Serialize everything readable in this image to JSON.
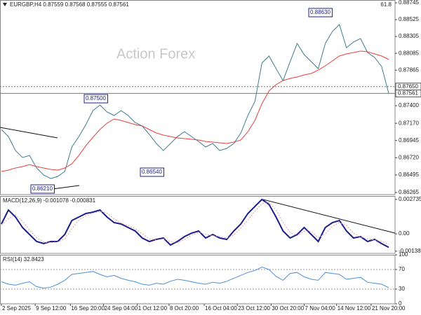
{
  "chart_data": [
    {
      "type": "line",
      "title": "EURGBP,H4 0.87559 0.87568 0.87555 0.87561",
      "watermark": "Action Forex",
      "corner_note": "61.8",
      "annotations": [
        "0.88630",
        "0.87500",
        "0.86540",
        "0.86210"
      ],
      "xlim": [
        -0.2,
        55.9
      ],
      "ylim": [
        0.86238,
        0.88782
      ],
      "yticks": [
        0.88745,
        0.88525,
        0.88305,
        0.88085,
        0.87865,
        {
          "value": 0.874,
          "label": "0.87400"
        },
        {
          "value": 0.8717,
          "label": "0.87170"
        },
        0.86945,
        {
          "value": 0.8672,
          "label": "0.86720"
        },
        0.86495,
        0.86265
      ],
      "price_lines": [
        {
          "value": 0.8765,
          "label": "0.87650",
          "style": "dotted"
        },
        {
          "value": 0.87561,
          "label": "0.87561",
          "style": "solid"
        }
      ],
      "series": [
        {
          "color": "#3f7d8e",
          "style": "solid",
          "values": [
            0.87089,
            0.86997,
            0.86814,
            0.86723,
            0.8675,
            0.86586,
            0.86494,
            0.86448,
            0.86476,
            0.8654,
            0.8686,
            0.86997,
            0.87153,
            0.87336,
            0.87409,
            0.87318,
            0.87272,
            0.87336,
            0.87272,
            0.8718,
            0.87135,
            0.87025,
            0.86906,
            0.86814,
            0.86906,
            0.86997,
            0.87061,
            0.86997,
            0.86933,
            0.8686,
            0.86906,
            0.86814,
            0.86842,
            0.86906,
            0.87043,
            0.87272,
            0.87455,
            0.87958,
            0.8805,
            0.87885,
            0.87729,
            0.87976,
            0.88214,
            0.88068,
            0.87976,
            0.87885,
            0.88214,
            0.8837,
            0.88461,
            0.88159,
            0.88233,
            0.88278,
            0.88095,
            0.88031,
            0.87912,
            0.87561
          ]
        },
        {
          "color": "#e8403a",
          "style": "solid",
          "values": [
            0.8654,
            0.86558,
            0.86586,
            0.86604,
            0.86631,
            0.86604,
            0.86586,
            0.86567,
            0.86558,
            0.86586,
            0.8664,
            0.8675,
            0.86878,
            0.86988,
            0.87089,
            0.87171,
            0.87226,
            0.87208,
            0.8718,
            0.87153,
            0.87135,
            0.87089,
            0.87043,
            0.87016,
            0.86997,
            0.86979,
            0.8697,
            0.86961,
            0.86952,
            0.86933,
            0.86924,
            0.86915,
            0.86906,
            0.86924,
            0.86952,
            0.87061,
            0.87208,
            0.87427,
            0.87592,
            0.87675,
            0.87729,
            0.87757,
            0.87775,
            0.87803,
            0.87821,
            0.87866,
            0.87922,
            0.87986,
            0.8805,
            0.88077,
            0.88095,
            0.88114,
            0.88105,
            0.88077,
            0.8805,
            0.88004
          ]
        }
      ]
    },
    {
      "type": "line",
      "title": "MACD(12,26,9) -0.001078 -0.000831",
      "xlim": [
        -0.2,
        55.9
      ],
      "ylim": [
        -0.00156,
        0.00301
      ],
      "yticks": [
        0.002735,
        {
          "value": 0,
          "label": "0.00"
        },
        -0.001384
      ],
      "series": [
        {
          "color": "#1c1f8a",
          "style": "thick",
          "values": [
            0.000781,
            0.001898,
            0.00134,
            0.000502,
            -5.6e-05,
            -0.000614,
            -0.000781,
            -0.000614,
            -0.000614,
            -5.6e-05,
            0.001061,
            0.00134,
            0.001619,
            0.00173,
            0.001898,
            0.00134,
            0.000893,
            0.000781,
            0.000502,
            0.000223,
            -0.000335,
            -0.000614,
            -0.000447,
            -0.000335,
            -0.000893,
            -0.000614,
            -0.000223,
            5.6e-05,
            0.000223,
            -0.000335,
            -5.6e-05,
            -0.000335,
            -0.000447,
            0.000223,
            0.000781,
            0.001619,
            0.002177,
            0.002735,
            0.002344,
            0.00134,
            0.000223,
            -0.000335,
            -5.6e-05,
            0.000502,
            -5.6e-05,
            -0.000614,
            0.000502,
            0.000893,
            0.001061,
            0.000223,
            -0.000335,
            -0.000223,
            -0.000614,
            -0.000447,
            -0.000781,
            -0.001078
          ]
        },
        {
          "color": "#e49aa8",
          "style": "dotted",
          "values": [
            0.0007,
            0.0012,
            0.0015,
            0.001,
            0.0003,
            -0.0003,
            -0.00065,
            -0.0007,
            -0.00065,
            -0.0004,
            0.0004,
            0.0011,
            0.00145,
            0.00165,
            0.0018,
            0.00165,
            0.0012,
            0.00085,
            0.00065,
            0.0004,
            0,
            -0.0004,
            -0.0005,
            -0.0004,
            -0.0006,
            -0.0007,
            -0.00045,
            -0.0001,
            0.0001,
            -5e-05,
            -0.00015,
            -0.0002,
            -0.00035,
            -0.0001,
            0.00045,
            0.0011,
            0.0018,
            0.0024,
            0.0025,
            0.0019,
            0.0009,
            0.0001,
            -0.00015,
            0.0002,
            0.0002,
            -0.0003,
            0,
            0.0006,
            0.0009,
            0.00065,
            5e-05,
            -0.00025,
            -0.0004,
            -0.0005,
            -0.0006,
            -0.000831
          ]
        }
      ]
    },
    {
      "type": "line",
      "title": "RSI(14) 32.8423",
      "xlim": [
        -0.2,
        55.9
      ],
      "ylim": [
        0,
        100
      ],
      "yticks": [
        100,
        70,
        30,
        0
      ],
      "grid": true,
      "xticks": [
        {
          "value": 0,
          "label": "2 Sep 2025"
        },
        {
          "value": 4.8,
          "label": "9 Sep 12:00"
        },
        {
          "value": 9.8,
          "label": "16 Sep 20:00"
        },
        {
          "value": 14.5,
          "label": "24 Sep 04:00"
        },
        {
          "value": 19.3,
          "label": "1 Oct 12:00"
        },
        {
          "value": 23.8,
          "label": "8 Oct 20:00"
        },
        {
          "value": 28.8,
          "label": "16 Oct 04:00"
        },
        {
          "value": 33.5,
          "label": "23 Oct 12:00"
        },
        {
          "value": 38.3,
          "label": "30 Oct 20:00"
        },
        {
          "value": 43,
          "label": "7 Nov 04:00"
        },
        {
          "value": 47.6,
          "label": "14 Nov 12:00"
        },
        {
          "value": 52.5,
          "label": "21 Nov 20:00"
        }
      ],
      "series": [
        {
          "color": "#4a90d9",
          "style": "solid",
          "values": [
            45,
            40,
            38,
            42,
            45,
            35,
            32,
            34,
            40,
            48,
            60,
            62,
            64,
            66,
            60,
            55,
            58,
            52,
            48,
            45,
            40,
            38,
            42,
            40,
            46,
            50,
            48,
            45,
            42,
            40,
            44,
            42,
            46,
            52,
            58,
            64,
            68,
            75,
            70,
            56,
            48,
            62,
            64,
            55,
            50,
            48,
            64,
            62,
            60,
            50,
            52,
            54,
            44,
            42,
            40,
            32.8423
          ]
        }
      ]
    }
  ]
}
